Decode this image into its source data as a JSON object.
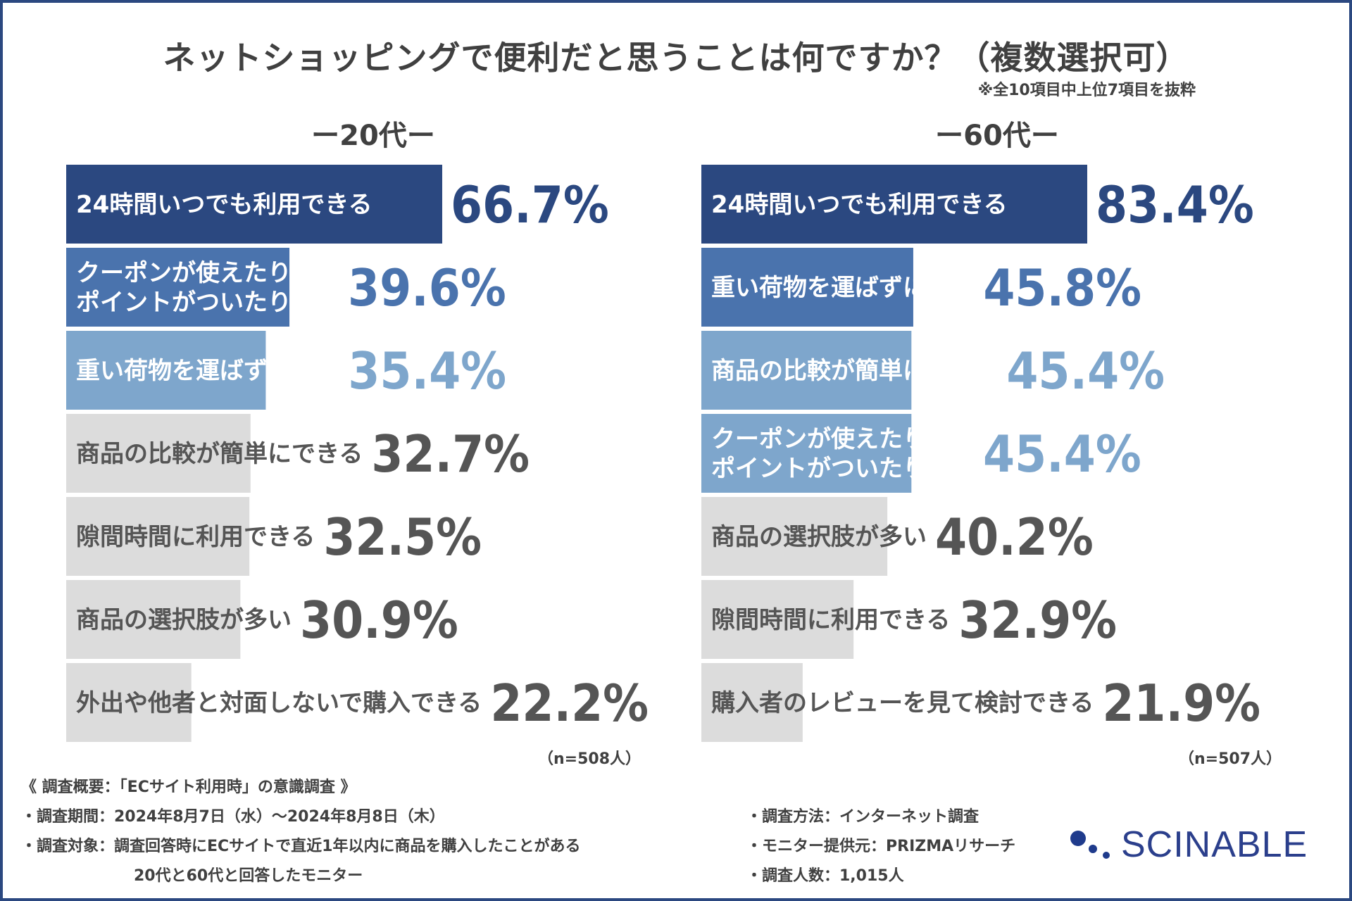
{
  "title": "ネットショッピングで便利だと思うことは何ですか？（複数選択可）",
  "note": "※全10項目中上位7項目を抜粋",
  "colors": {
    "rank1": "#2b4880",
    "rank2": "#4a73ad",
    "rank3": "#7ea6cc",
    "other": "#dcdcdc",
    "text_other": "#555555",
    "label_light": "#ffffff"
  },
  "chart_data": [
    {
      "type": "bar",
      "orientation": "horizontal",
      "title": "ー20代ー",
      "n_note": "（n=508人）",
      "categories": [
        "24時間いつでも利用できる",
        "クーポンが使えたり\nポイントがついたりする",
        "重い荷物を運ばずにすむ",
        "商品の比較が簡単にできる",
        "隙間時間に利用できる",
        "商品の選択肢が多い",
        "外出や他者と対面しないで購入できる"
      ],
      "values": [
        66.7,
        39.6,
        35.4,
        32.7,
        32.5,
        30.9,
        22.2
      ],
      "value_labels": [
        "66.7%",
        "39.6%",
        "35.4%",
        "32.7%",
        "32.5%",
        "30.9%",
        "22.2%"
      ],
      "xlim": [
        0,
        80
      ]
    },
    {
      "type": "bar",
      "orientation": "horizontal",
      "title": "ー60代ー",
      "n_note": "（n=507人）",
      "categories": [
        "24時間いつでも利用できる",
        "重い荷物を運ばずにすむ",
        "商品の比較が簡単にできる",
        "クーポンが使えたり\nポイントがついたりする",
        "商品の選択肢が多い",
        "隙間時間に利用できる",
        "購入者のレビューを見て検討できる"
      ],
      "values": [
        83.4,
        45.8,
        45.4,
        45.4,
        40.2,
        32.9,
        21.9
      ],
      "value_labels": [
        "83.4%",
        "45.8%",
        "45.4%",
        "45.4%",
        "40.2%",
        "32.9%",
        "21.9%"
      ],
      "xlim": [
        0,
        100
      ]
    }
  ],
  "footer": {
    "overview": "《 調査概要：「ECサイト利用時」の意識調査 》",
    "period": "・調査期間：2024年8月7日（水）～2024年8月8日（木）",
    "target_line1": "・調査対象：調査回答時にECサイトで直近1年以内に商品を購入したことがある",
    "target_line2": "20代と60代と回答したモニター",
    "method": "・調査方法：インターネット調査",
    "provider": "・モニター提供元：PRIZMAリサーチ",
    "count": "・調査人数：1,015人"
  },
  "logo": {
    "text": "SCINABLE",
    "icon": "scinable-dots-logo"
  }
}
